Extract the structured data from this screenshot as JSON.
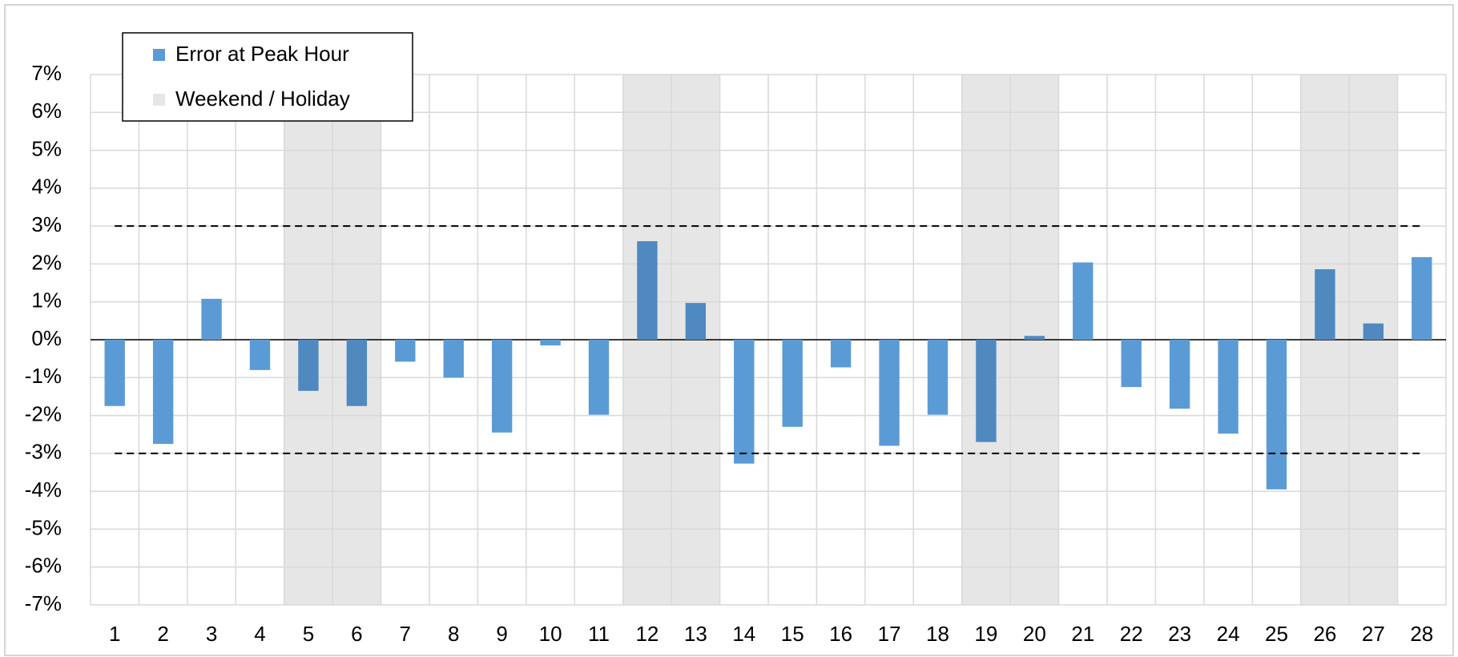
{
  "chart_data": {
    "type": "bar",
    "categories": [
      "1",
      "2",
      "3",
      "4",
      "5",
      "6",
      "7",
      "8",
      "9",
      "10",
      "11",
      "12",
      "13",
      "14",
      "15",
      "16",
      "17",
      "18",
      "19",
      "20",
      "21",
      "22",
      "23",
      "24",
      "25",
      "26",
      "27",
      "28"
    ],
    "series": [
      {
        "name": "Error at Peak Hour",
        "color": "#5b9bd5",
        "weekend_color": "#4f89c0",
        "values": [
          -1.75,
          -2.75,
          1.08,
          -0.8,
          -1.35,
          -1.75,
          -0.58,
          -1.0,
          -2.45,
          -0.15,
          -1.98,
          2.6,
          0.97,
          -3.27,
          -2.3,
          -0.73,
          -2.8,
          -1.98,
          -2.7,
          0.1,
          2.04,
          -1.25,
          -1.82,
          -2.48,
          -3.95,
          1.86,
          0.43,
          2.18
        ]
      }
    ],
    "highlight": {
      "name": "Weekend / Holiday",
      "color": "#e6e6e6",
      "flags": [
        false,
        false,
        false,
        false,
        true,
        true,
        false,
        false,
        false,
        false,
        false,
        true,
        true,
        false,
        false,
        false,
        false,
        false,
        true,
        true,
        false,
        false,
        false,
        false,
        false,
        true,
        true,
        false
      ]
    },
    "reference_lines": [
      3,
      -3
    ],
    "ylim": [
      -7,
      7
    ],
    "yticks": [
      {
        "value": -7,
        "label": "-7%"
      },
      {
        "value": -6,
        "label": "-6%"
      },
      {
        "value": -5,
        "label": "-5%"
      },
      {
        "value": -4,
        "label": "-4%"
      },
      {
        "value": -3,
        "label": "-3%"
      },
      {
        "value": -2,
        "label": "-2%"
      },
      {
        "value": -1,
        "label": "-1%"
      },
      {
        "value": 0,
        "label": "0%"
      },
      {
        "value": 1,
        "label": "1%"
      },
      {
        "value": 2,
        "label": "2%"
      },
      {
        "value": 3,
        "label": "3%"
      },
      {
        "value": 4,
        "label": "4%"
      },
      {
        "value": 5,
        "label": "5%"
      },
      {
        "value": 6,
        "label": "6%"
      },
      {
        "value": 7,
        "label": "7%"
      }
    ],
    "grid": true,
    "legend": "top-left"
  }
}
